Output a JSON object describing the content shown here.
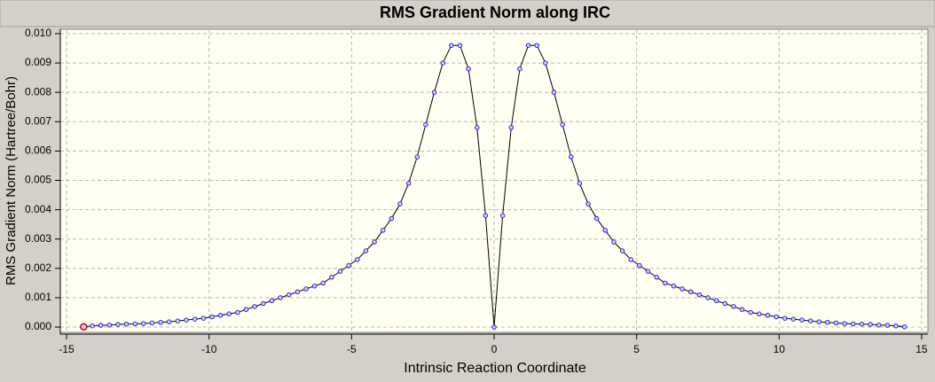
{
  "chart_data": {
    "type": "line",
    "title": "RMS Gradient Norm along IRC",
    "x_label": "Intrinsic Reaction Coordinate",
    "y_label": "RMS Gradient Norm (Hartree/Bohr)",
    "xlim": [
      -15.22,
      15.22
    ],
    "ylim": [
      -0.00018,
      0.01015
    ],
    "xticks": [
      -15,
      -10,
      -5,
      0,
      5,
      10,
      15
    ],
    "yticks": [
      {
        "value": 0,
        "label": "0.000"
      },
      {
        "value": 0.001,
        "label": "0.001"
      },
      {
        "value": 0.002,
        "label": "0.002"
      },
      {
        "value": 0.003,
        "label": "0.003"
      },
      {
        "value": 0.004,
        "label": "0.004"
      },
      {
        "value": 0.005,
        "label": "0.005"
      },
      {
        "value": 0.006,
        "label": "0.006"
      },
      {
        "value": 0.007,
        "label": "0.007"
      },
      {
        "value": 0.008,
        "label": "0.008"
      },
      {
        "value": 0.009,
        "label": "0.009"
      },
      {
        "value": 0.01,
        "label": "0.010"
      }
    ],
    "grid": true,
    "x": [
      -14.4,
      -14.1,
      -13.8,
      -13.5,
      -13.2,
      -12.9,
      -12.6,
      -12.3,
      -12.0,
      -11.7,
      -11.4,
      -11.1,
      -10.8,
      -10.5,
      -10.2,
      -9.9,
      -9.6,
      -9.3,
      -9.0,
      -8.7,
      -8.4,
      -8.1,
      -7.8,
      -7.5,
      -7.2,
      -6.9,
      -6.6,
      -6.3,
      -6.0,
      -5.7,
      -5.4,
      -5.1,
      -4.8,
      -4.5,
      -4.2,
      -3.9,
      -3.6,
      -3.3,
      -3.0,
      -2.7,
      -2.4,
      -2.1,
      -1.8,
      -1.5,
      -1.2,
      -0.9,
      -0.6,
      -0.3,
      0,
      0.3,
      0.6,
      0.9,
      1.2,
      1.5,
      1.8,
      2.1,
      2.4,
      2.7,
      3.0,
      3.3,
      3.6,
      3.9,
      4.2,
      4.5,
      4.8,
      5.1,
      5.4,
      5.7,
      6.0,
      6.3,
      6.6,
      6.9,
      7.2,
      7.5,
      7.8,
      8.1,
      8.4,
      8.7,
      9.0,
      9.3,
      9.6,
      9.9,
      10.2,
      10.5,
      10.8,
      11.1,
      11.4,
      11.7,
      12.0,
      12.3,
      12.6,
      12.9,
      13.2,
      13.5,
      13.8,
      14.1,
      14.4
    ],
    "series": [
      {
        "color": "#000000",
        "marker_fill": "#c8ccff",
        "marker_stroke": "#1c1ccc",
        "values": [
          1e-05,
          4e-05,
          6e-05,
          7e-05,
          9e-05,
          0.0001,
          0.00011,
          0.00012,
          0.00014,
          0.00016,
          0.00018,
          0.00021,
          0.00024,
          0.00027,
          0.0003,
          0.00035,
          0.0004,
          0.00045,
          0.0005,
          0.0006,
          0.0007,
          0.0008,
          0.0009,
          0.001,
          0.0011,
          0.0012,
          0.0013,
          0.0014,
          0.0015,
          0.0017,
          0.0019,
          0.0021,
          0.0023,
          0.0026,
          0.0029,
          0.0033,
          0.0037,
          0.0042,
          0.0049,
          0.0058,
          0.0069,
          0.008,
          0.009,
          0.0096,
          0.0096,
          0.0088,
          0.0068,
          0.0038,
          0,
          0.0038,
          0.0068,
          0.0088,
          0.0096,
          0.0096,
          0.009,
          0.008,
          0.0069,
          0.0058,
          0.0049,
          0.0042,
          0.0037,
          0.0033,
          0.0029,
          0.0026,
          0.0023,
          0.0021,
          0.0019,
          0.0017,
          0.0015,
          0.0014,
          0.0013,
          0.0012,
          0.0011,
          0.001,
          0.0009,
          0.0008,
          0.0007,
          0.0006,
          0.0005,
          0.00045,
          0.0004,
          0.00035,
          0.0003,
          0.00027,
          0.00024,
          0.00021,
          0.00018,
          0.00016,
          0.00014,
          0.00012,
          0.00011,
          0.0001,
          9e-05,
          7e-05,
          6e-05,
          4e-05,
          1e-05
        ]
      }
    ],
    "highlight": {
      "index": 0,
      "color": "#cc0000"
    }
  }
}
